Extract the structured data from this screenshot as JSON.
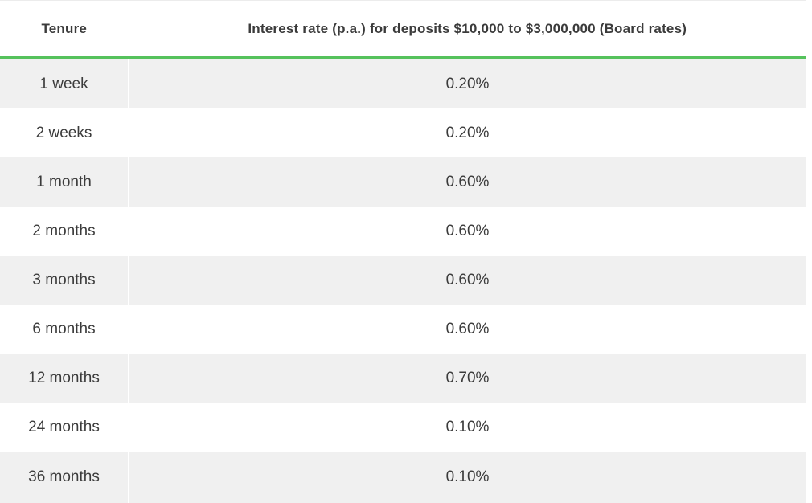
{
  "table": {
    "columns": {
      "tenure_label": "Tenure",
      "rate_label": "Interest rate (p.a.) for deposits $10,000 to $3,000,000 (Board rates)"
    },
    "rows": [
      {
        "tenure": "1 week",
        "rate": "0.20%"
      },
      {
        "tenure": "2 weeks",
        "rate": "0.20%"
      },
      {
        "tenure": "1 month",
        "rate": "0.60%"
      },
      {
        "tenure": "2 months",
        "rate": "0.60%"
      },
      {
        "tenure": "3 months",
        "rate": "0.60%"
      },
      {
        "tenure": "6 months",
        "rate": "0.60%"
      },
      {
        "tenure": "12 months",
        "rate": "0.70%"
      },
      {
        "tenure": "24 months",
        "rate": "0.10%"
      },
      {
        "tenure": "36 months",
        "rate": "0.10%"
      }
    ]
  },
  "colors": {
    "accent_green": "#55c25c",
    "alt_row_bg": "#f0f0f0",
    "text": "#3b3b3b",
    "header_divider": "#e2e2e2"
  }
}
